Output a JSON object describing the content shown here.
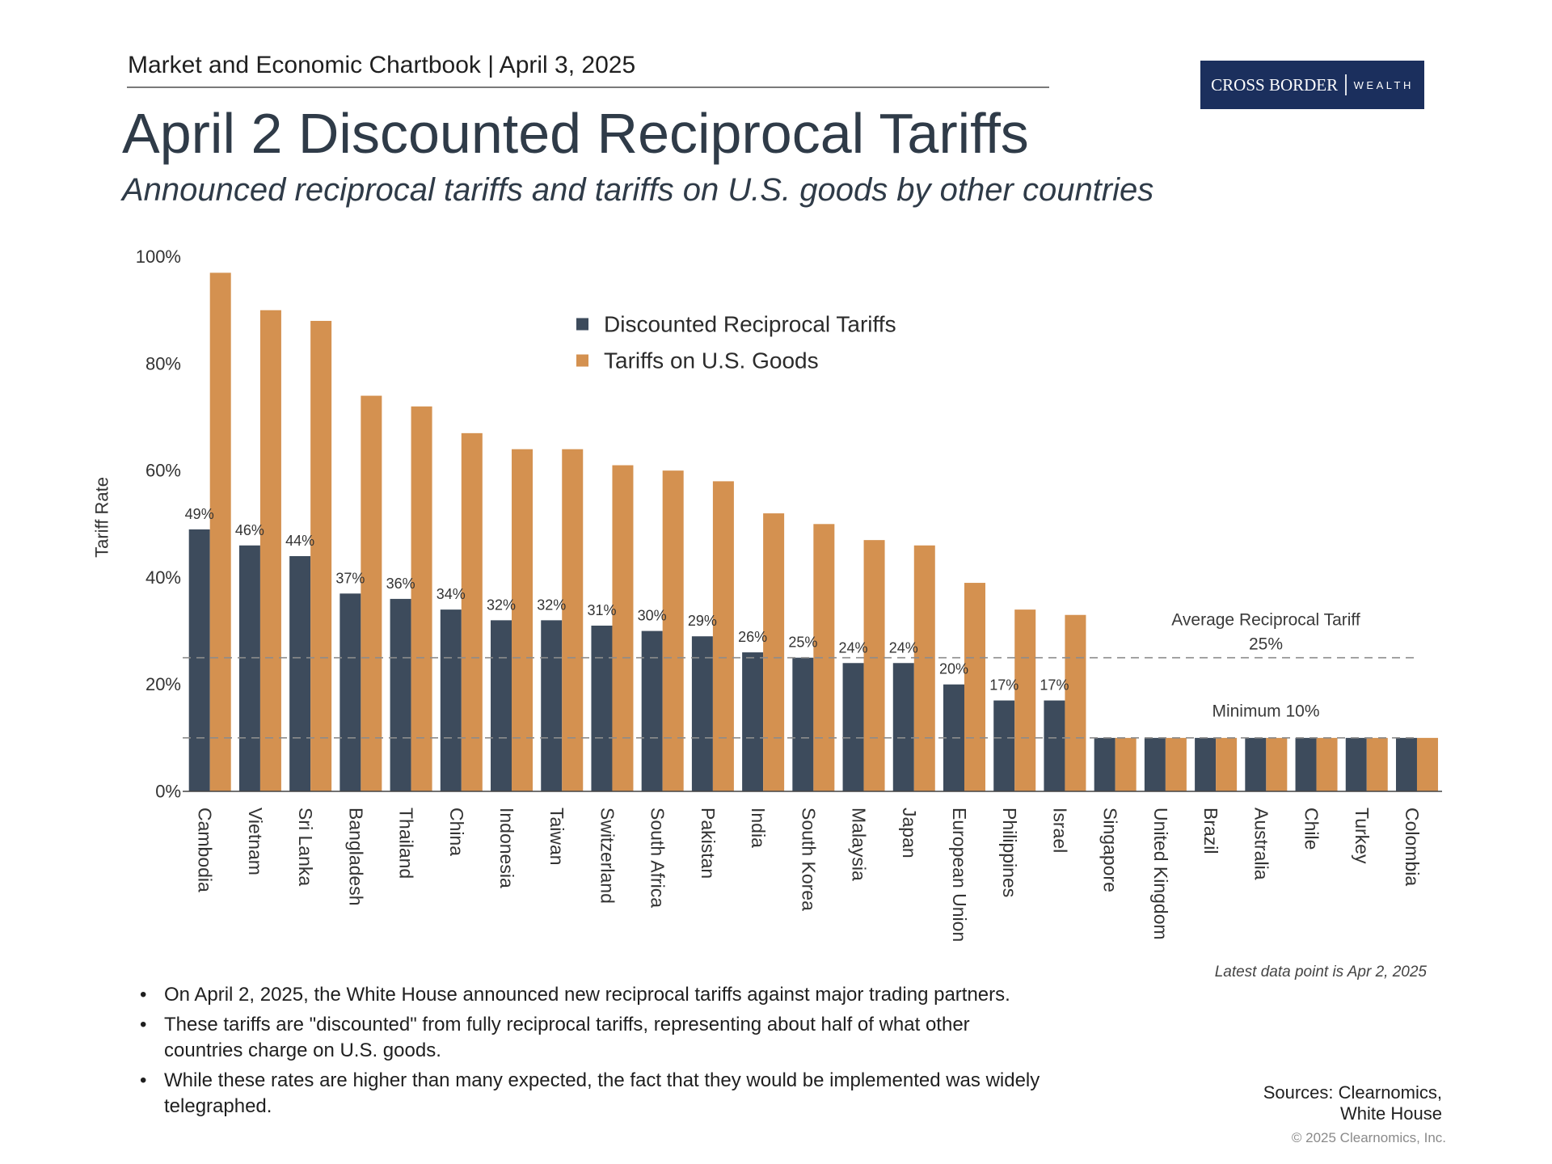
{
  "header": {
    "chartbook": "Market and Economic Chartbook | April 3, 2025",
    "logo_primary": "CROSS BORDER",
    "logo_secondary": "WEALTH"
  },
  "chart_data": {
    "type": "bar",
    "title": "April 2 Discounted Reciprocal Tariffs",
    "subtitle": "Announced reciprocal tariffs and tariffs on U.S. goods by other countries",
    "xlabel": "",
    "ylabel": "Tariff Rate",
    "ylim": [
      0,
      100
    ],
    "yticks": [
      0,
      20,
      40,
      60,
      80,
      100
    ],
    "ytick_labels": [
      "0%",
      "20%",
      "40%",
      "60%",
      "80%",
      "100%"
    ],
    "grid": false,
    "categories": [
      "Cambodia",
      "Vietnam",
      "Sri Lanka",
      "Bangladesh",
      "Thailand",
      "China",
      "Indonesia",
      "Taiwan",
      "Switzerland",
      "South Africa",
      "Pakistan",
      "India",
      "South Korea",
      "Malaysia",
      "Japan",
      "European Union",
      "Philippines",
      "Israel",
      "Singapore",
      "United Kingdom",
      "Brazil",
      "Australia",
      "Chile",
      "Turkey",
      "Colombia"
    ],
    "series": [
      {
        "name": "Discounted Reciprocal Tariffs",
        "color": "#3d4b5c",
        "values": [
          49,
          46,
          44,
          37,
          36,
          34,
          32,
          32,
          31,
          30,
          29,
          26,
          25,
          24,
          24,
          20,
          17,
          17,
          10,
          10,
          10,
          10,
          10,
          10,
          10
        ],
        "data_labels": [
          "49%",
          "46%",
          "44%",
          "37%",
          "36%",
          "34%",
          "32%",
          "32%",
          "31%",
          "30%",
          "29%",
          "26%",
          "25%",
          "24%",
          "24%",
          "20%",
          "17%",
          "17%",
          null,
          null,
          null,
          null,
          null,
          null,
          null
        ]
      },
      {
        "name": "Tariffs on U.S. Goods",
        "color": "#d49150",
        "values": [
          97,
          90,
          88,
          74,
          72,
          67,
          64,
          64,
          61,
          60,
          58,
          52,
          50,
          47,
          46,
          39,
          34,
          33,
          10,
          10,
          10,
          10,
          10,
          10,
          10
        ]
      }
    ],
    "reference_lines": [
      {
        "value": 25,
        "label": "Average Reciprocal Tariff",
        "value_label": "25%"
      },
      {
        "value": 10,
        "label": "Minimum 10%"
      }
    ],
    "note": "Latest data point is Apr 2, 2025"
  },
  "bullets": [
    "On April 2, 2025, the White House announced new reciprocal tariffs against major trading partners.",
    "These tariffs are \"discounted\" from fully reciprocal tariffs, representing about half of what other countries charge on U.S. goods.",
    "While these rates are higher than many expected, the fact that they would be implemented was widely telegraphed."
  ],
  "sources": "Sources: Clearnomics, White House",
  "copyright": "© 2025 Clearnomics, Inc."
}
